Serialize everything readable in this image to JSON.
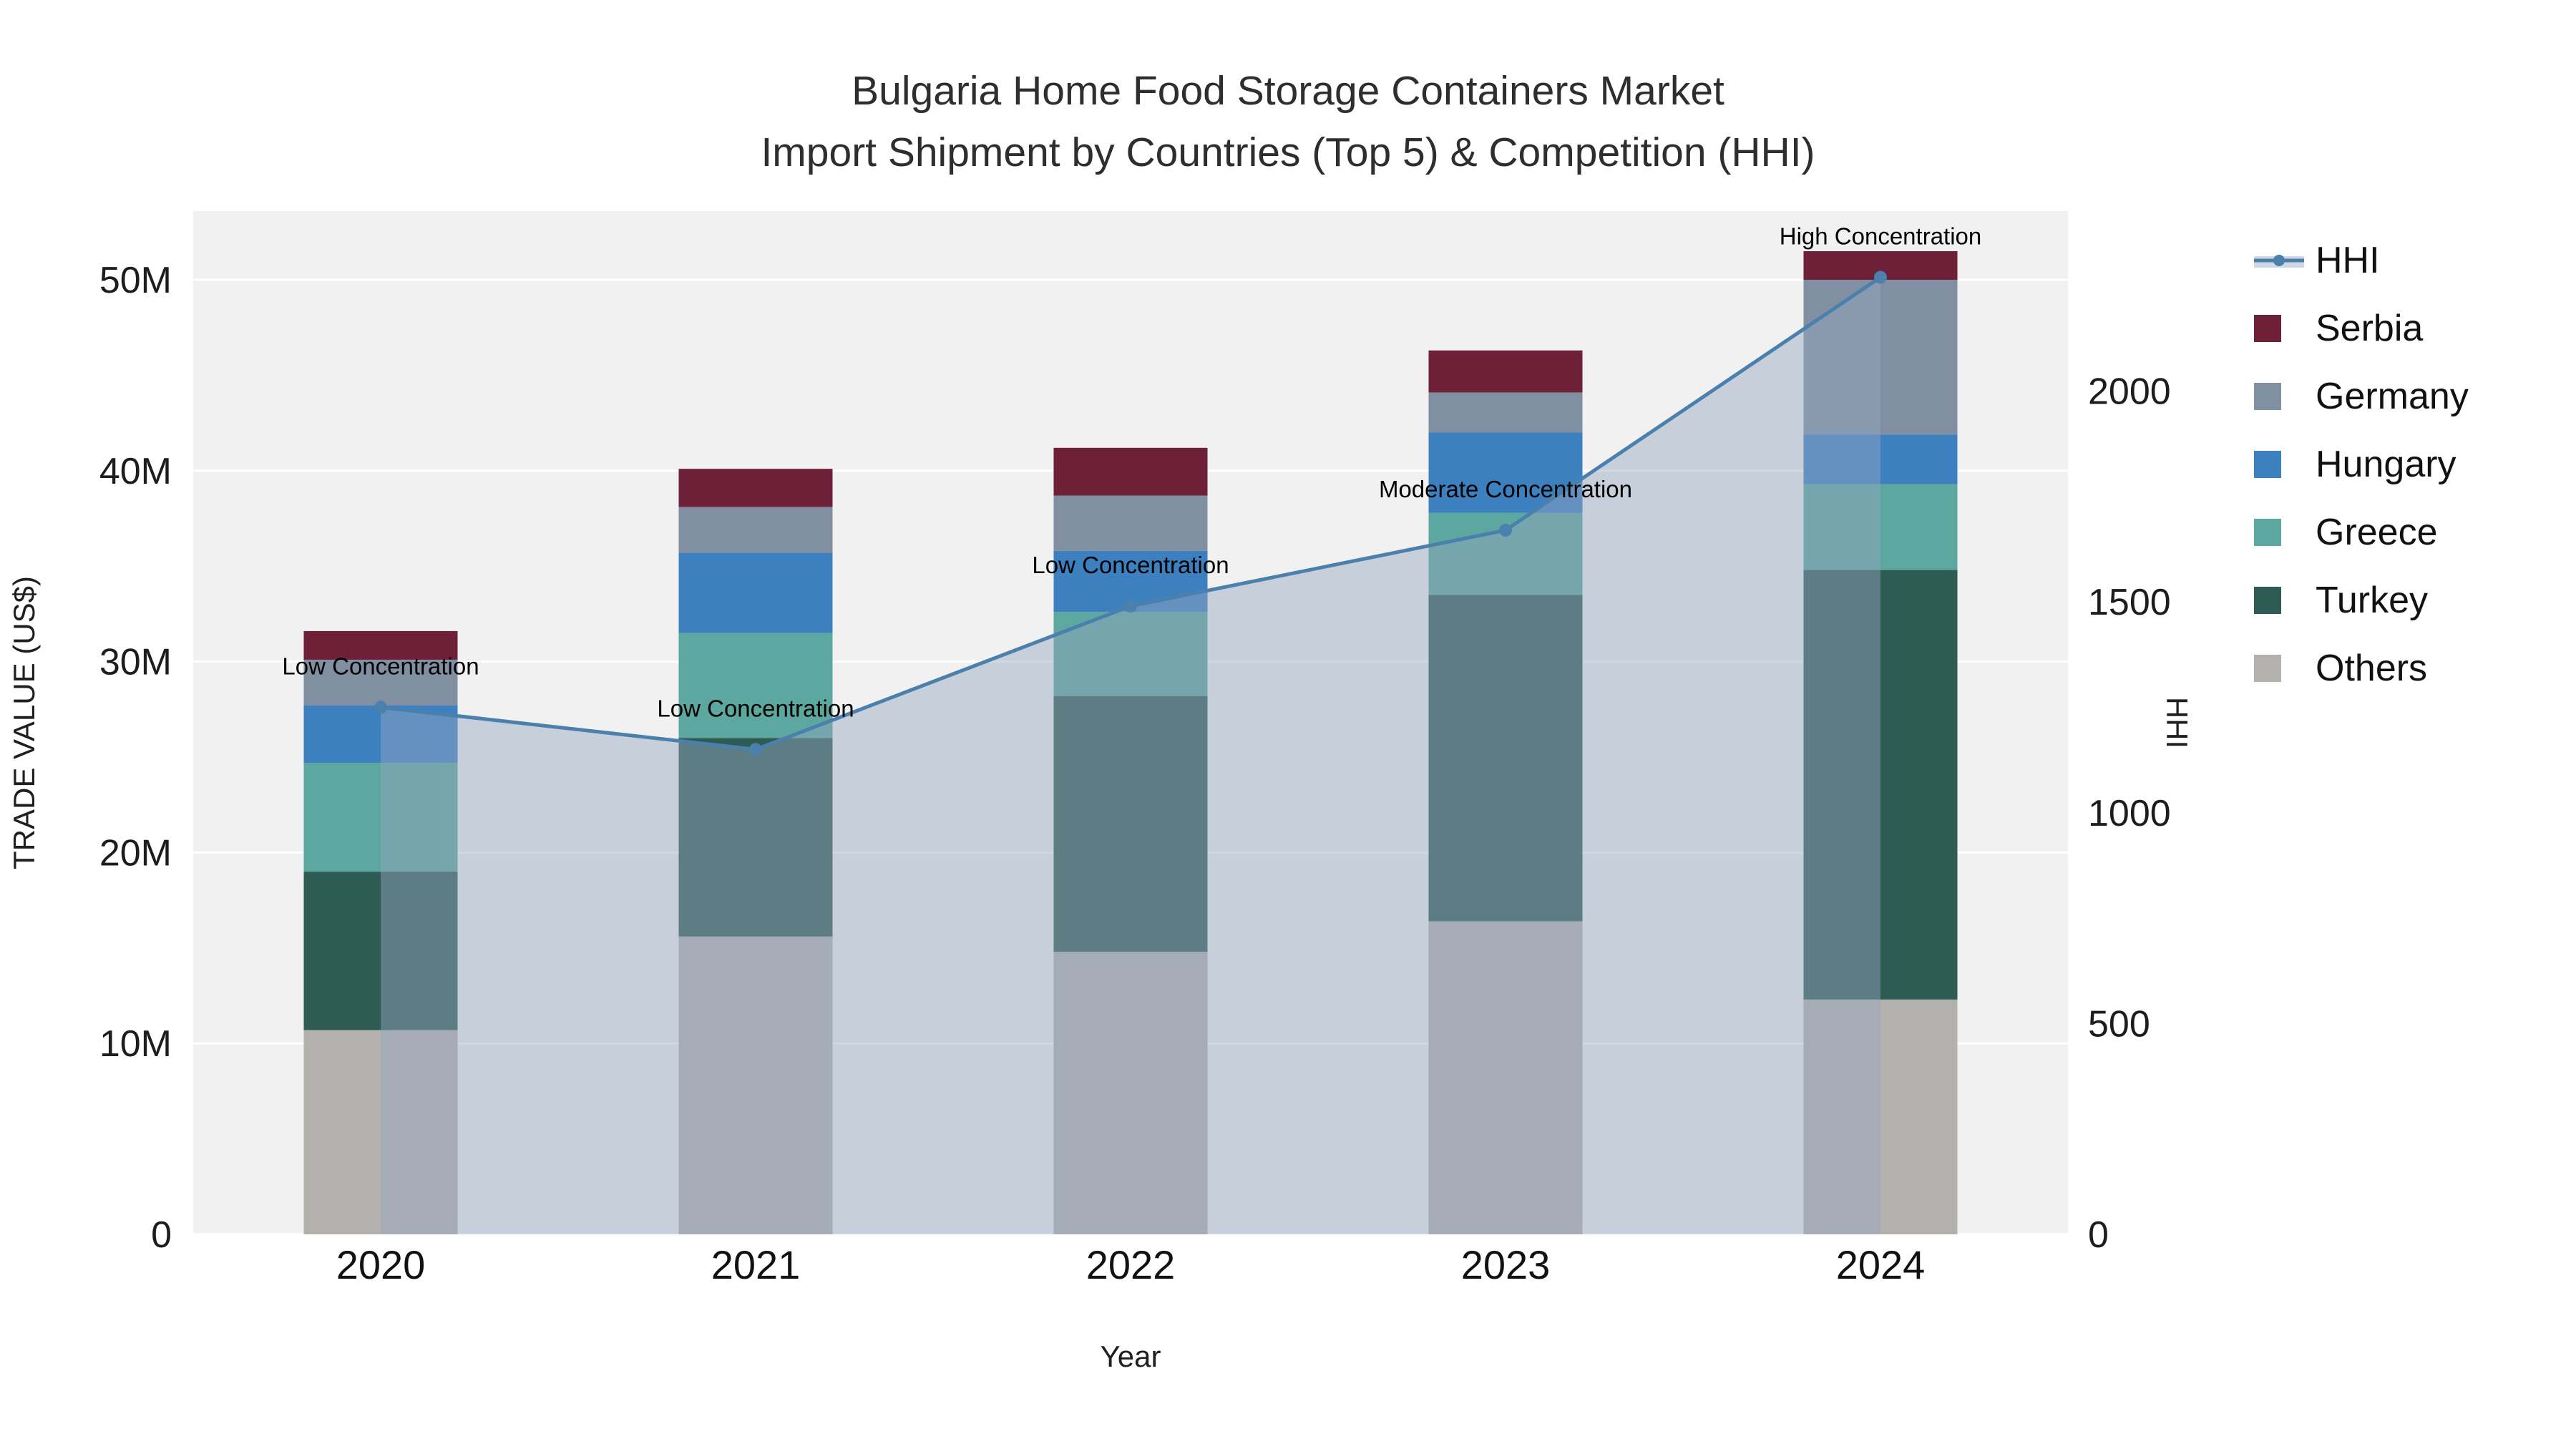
{
  "title": {
    "line1": "Bulgaria Home Food Storage Containers Market",
    "line2": "Import Shipment by Countries (Top 5) & Competition (HHI)"
  },
  "axes": {
    "x_title": "Year",
    "y_left_title": "TRADE VALUE (US$)",
    "y_right_title": "HHI",
    "y_left_ticks": [
      "0",
      "10M",
      "20M",
      "30M",
      "40M",
      "50M"
    ],
    "y_left_tick_values": [
      0,
      10,
      20,
      30,
      40,
      50
    ],
    "y_right_ticks": [
      "0",
      "500",
      "1000",
      "1500",
      "2000"
    ],
    "y_right_tick_values": [
      0,
      500,
      1000,
      1500,
      2000
    ]
  },
  "colors": {
    "plot_background": "#f1f1f1",
    "gridline": "#ffffff",
    "hhi_line": "#4b80ad",
    "hhi_fill": "rgba(148,166,190,0.45)"
  },
  "chart_data": {
    "type": "stacked-bar+line",
    "title": "Bulgaria Home Food Storage Containers Market — Import Shipment by Countries (Top 5) & Competition (HHI)",
    "xlabel": "Year",
    "ylabel_left": "TRADE VALUE (US$)",
    "ylabel_right": "HHI",
    "categories": [
      "2020",
      "2021",
      "2022",
      "2023",
      "2024"
    ],
    "value_unit": "M US$",
    "ylim_left": [
      0,
      53.6
    ],
    "ylim_right": [
      0,
      2427
    ],
    "grid": true,
    "legend_position": "right",
    "series": [
      {
        "name": "Others",
        "color": "#b2b1ae",
        "values": [
          10.7,
          15.6,
          14.8,
          16.4,
          12.3
        ]
      },
      {
        "name": "Turkey",
        "color": "#2e5b54",
        "values": [
          8.3,
          10.4,
          13.4,
          17.1,
          22.5
        ]
      },
      {
        "name": "Greece",
        "color": "#5ca7a0",
        "values": [
          5.7,
          5.5,
          4.4,
          4.3,
          4.5
        ]
      },
      {
        "name": "Hungary",
        "color": "#3d80c0",
        "values": [
          3.0,
          4.2,
          3.2,
          4.2,
          2.6
        ]
      },
      {
        "name": "Germany",
        "color": "#8090a2",
        "values": [
          2.4,
          2.4,
          2.9,
          2.1,
          8.1
        ]
      },
      {
        "name": "Serbia",
        "color": "#6e2039",
        "values": [
          1.5,
          2.0,
          2.5,
          2.2,
          1.5
        ]
      }
    ],
    "bar_totals": [
      31.6,
      40.1,
      41.2,
      46.3,
      51.5
    ],
    "line_series": {
      "name": "HHI",
      "color": "#4b80ad",
      "fill_color": "rgba(148,166,190,0.45)",
      "values": [
        1250,
        1150,
        1490,
        1670,
        2270
      ]
    },
    "annotations": [
      "Low Concentration",
      "Low Concentration",
      "Low Concentration",
      "Moderate Concentration",
      "High Concentration"
    ]
  },
  "legend": {
    "items": [
      {
        "label": "HHI",
        "type": "line",
        "color": "#4b80ad"
      },
      {
        "label": "Serbia",
        "type": "swatch",
        "color": "#6e2039"
      },
      {
        "label": "Germany",
        "type": "swatch",
        "color": "#8090a2"
      },
      {
        "label": "Hungary",
        "type": "swatch",
        "color": "#3d80c0"
      },
      {
        "label": "Greece",
        "type": "swatch",
        "color": "#5ca7a0"
      },
      {
        "label": "Turkey",
        "type": "swatch",
        "color": "#2e5b54"
      },
      {
        "label": "Others",
        "type": "swatch",
        "color": "#b2b1ae"
      }
    ]
  }
}
